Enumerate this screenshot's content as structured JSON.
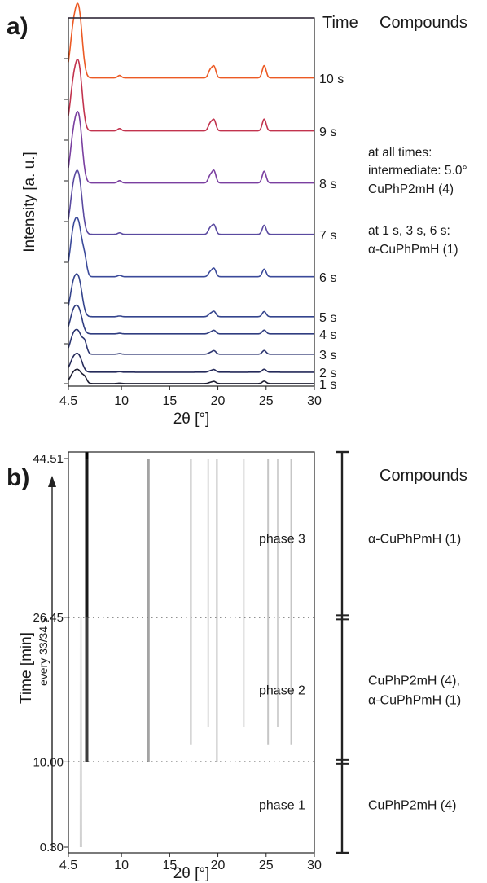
{
  "chart_data": [
    {
      "type": "line",
      "panel": "a)",
      "xlabel": "2θ [°]",
      "ylabel": "Intensity [a. u.]",
      "xlim": [
        4.5,
        30
      ],
      "x_ticks": [
        "4.5",
        "10",
        "15",
        "20",
        "25",
        "30"
      ],
      "x_tick_values": [
        4.5,
        10,
        15,
        20,
        25,
        30
      ],
      "time_header": "Time",
      "compounds_header": "Compounds",
      "peak_positions_2theta": [
        5.0,
        5.6,
        6.2,
        9.8,
        19.2,
        19.6,
        24.8
      ],
      "series": [
        {
          "name": "1 s",
          "color": "#1e1e32",
          "peaks": [
            0.45,
            0.55,
            0.25,
            0.02,
            0.05,
            0.1,
            0.12
          ]
        },
        {
          "name": "2 s",
          "color": "#252a5a",
          "peaks": [
            0.5,
            0.6,
            0.0,
            0.02,
            0.05,
            0.1,
            0.12
          ]
        },
        {
          "name": "3 s",
          "color": "#2c3570",
          "peaks": [
            0.6,
            0.65,
            0.35,
            0.02,
            0.05,
            0.12,
            0.13
          ]
        },
        {
          "name": "4 s",
          "color": "#303d80",
          "peaks": [
            0.7,
            0.75,
            0.0,
            0.02,
            0.05,
            0.12,
            0.13
          ]
        },
        {
          "name": "5 s",
          "color": "#34448d",
          "peaks": [
            0.85,
            0.95,
            0.0,
            0.02,
            0.08,
            0.15,
            0.15
          ]
        },
        {
          "name": "6 s",
          "color": "#3b4a9a",
          "peaks": [
            0.9,
            1.0,
            0.3,
            0.03,
            0.1,
            0.18,
            0.17
          ]
        },
        {
          "name": "7 s",
          "color": "#5a4aa0",
          "peaks": [
            0.8,
            1.0,
            0.0,
            0.03,
            0.12,
            0.18,
            0.18
          ]
        },
        {
          "name": "8 s",
          "color": "#7a3fa0",
          "peaks": [
            0.7,
            1.0,
            0.0,
            0.04,
            0.12,
            0.2,
            0.2
          ]
        },
        {
          "name": "9 s",
          "color": "#c2334e",
          "peaks": [
            0.7,
            1.0,
            0.0,
            0.04,
            0.12,
            0.18,
            0.2
          ]
        },
        {
          "name": "10 s",
          "color": "#ec5a24",
          "peaks": [
            0.7,
            1.0,
            0.0,
            0.04,
            0.12,
            0.18,
            0.2
          ]
        }
      ],
      "annotations": [
        "at all times:",
        "intermediate: 5.0°",
        "CuPhP2mH (4)",
        "at 1 s, 3 s, 6 s:",
        "α-CuPhPmH (1)"
      ]
    },
    {
      "type": "heatmap",
      "panel": "b)",
      "xlabel": "2θ [°]",
      "ylabel": "Time [min]",
      "ylabel_sub": "every 33/34 s",
      "xlim": [
        4.5,
        30
      ],
      "ylim": [
        0.3,
        44.51
      ],
      "x_ticks": [
        "4.5",
        "10",
        "15",
        "20",
        "25",
        "30"
      ],
      "x_tick_values": [
        4.5,
        10,
        15,
        20,
        25,
        30
      ],
      "y_ticks": [
        "0.30",
        "10.00",
        "26.45",
        "44.51"
      ],
      "y_tick_values": [
        0.3,
        10.0,
        26.45,
        44.51
      ],
      "phase_boundaries": [
        10.0,
        26.45
      ],
      "phases": [
        {
          "label": "phase 1",
          "t_from": 0.3,
          "t_to": 10.0,
          "compound_lines": [
            "CuPhP2mH (4)"
          ]
        },
        {
          "label": "phase 2",
          "t_from": 10.0,
          "t_to": 26.45,
          "compound_lines": [
            "CuPhP2mH (4),",
            "α-CuPhPmH (1)"
          ]
        },
        {
          "label": "phase 3",
          "t_from": 26.45,
          "t_to": 44.51,
          "compound_lines": [
            "α-CuPhPmH (1)"
          ]
        }
      ],
      "compounds_header": "Compounds",
      "intensity_lines": [
        {
          "x": 5.8,
          "t_from": 0.3,
          "t_to": 26.45,
          "intensity": 0.35
        },
        {
          "x": 6.4,
          "t_from": 26.45,
          "t_to": 44.51,
          "intensity": 1.0
        },
        {
          "x": 6.4,
          "t_from": 10.0,
          "t_to": 26.45,
          "intensity": 0.85
        },
        {
          "x": 12.8,
          "t_from": 10.0,
          "t_to": 44.51,
          "intensity": 0.4
        },
        {
          "x": 17.2,
          "t_from": 12.0,
          "t_to": 44.51,
          "intensity": 0.3
        },
        {
          "x": 19.0,
          "t_from": 14.0,
          "t_to": 44.51,
          "intensity": 0.18
        },
        {
          "x": 19.9,
          "t_from": 10.0,
          "t_to": 44.51,
          "intensity": 0.28
        },
        {
          "x": 22.7,
          "t_from": 14.0,
          "t_to": 44.51,
          "intensity": 0.12
        },
        {
          "x": 25.2,
          "t_from": 12.0,
          "t_to": 44.51,
          "intensity": 0.25
        },
        {
          "x": 26.2,
          "t_from": 14.0,
          "t_to": 44.51,
          "intensity": 0.2
        },
        {
          "x": 27.6,
          "t_from": 12.0,
          "t_to": 44.51,
          "intensity": 0.25
        }
      ]
    }
  ]
}
